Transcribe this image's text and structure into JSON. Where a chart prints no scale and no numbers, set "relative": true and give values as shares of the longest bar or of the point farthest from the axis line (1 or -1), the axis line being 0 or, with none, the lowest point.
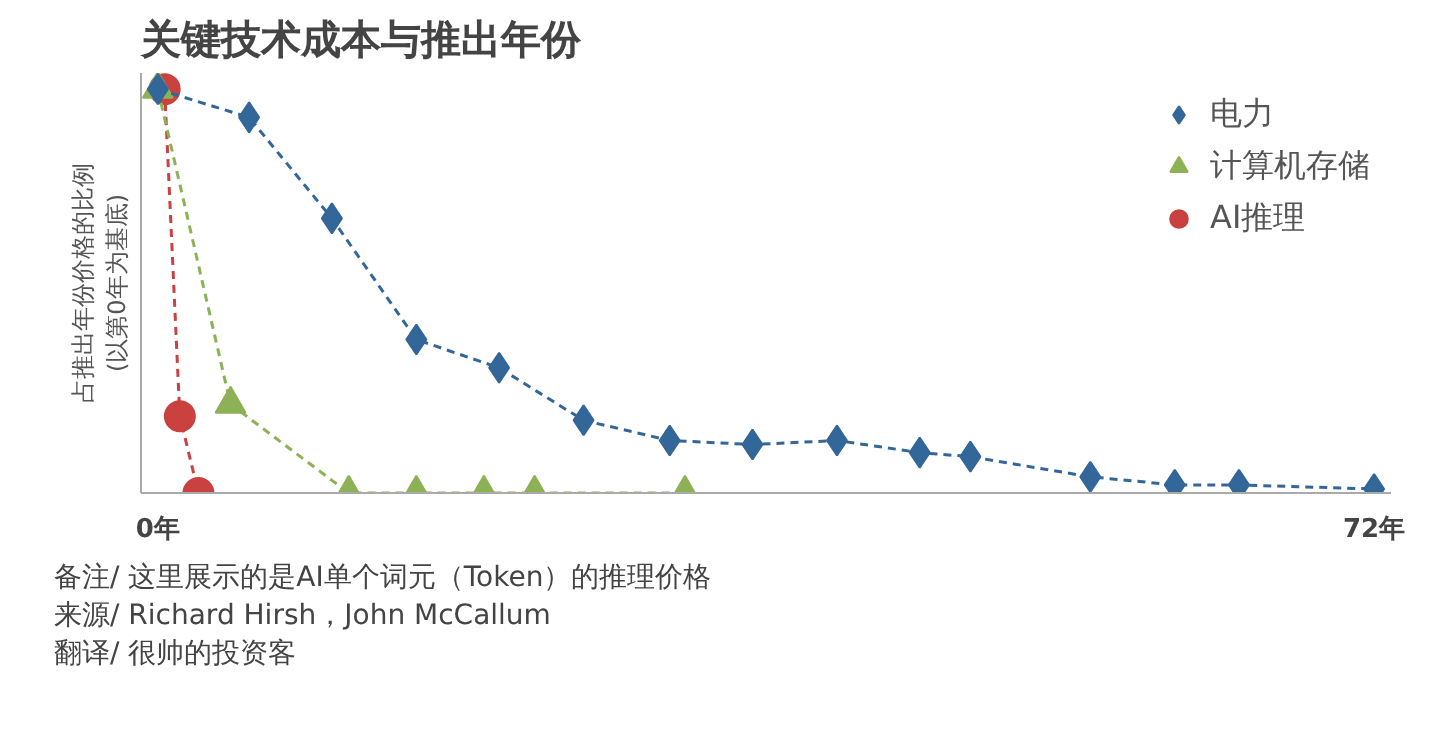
{
  "chart_data": {
    "type": "line",
    "title": "关键技术成本与推出年份",
    "ylabel": "占推出年份价格的比例\n(以第0年为基底)",
    "relative": true,
    "xlim": [
      -1,
      73
    ],
    "xticks": [
      {
        "value": 0,
        "label": "0年"
      },
      {
        "value": 72,
        "label": "72年"
      }
    ],
    "line_style": "dashed",
    "legend": "top right",
    "grid": false,
    "series": [
      {
        "name": "电力",
        "color": "#336699",
        "marker": "diamond",
        "x": [
          0,
          5.4,
          10.3,
          15.3,
          20.2,
          25.2,
          30.3,
          35.2,
          40.2,
          45.1,
          48.1,
          55.2,
          60.2,
          64.0,
          72
        ],
        "values": [
          1,
          0.93,
          0.68,
          0.38,
          0.31,
          0.18,
          0.13,
          0.12,
          0.13,
          0.1,
          0.09,
          0.04,
          0.02,
          0.02,
          0.01
        ]
      },
      {
        "name": "计算机存储",
        "color": "#8db255",
        "marker": "triangle",
        "x": [
          0,
          4.3,
          11.3,
          15.3,
          19.3,
          22.3,
          31.2
        ],
        "values": [
          1,
          0.22,
          0,
          0,
          0,
          0,
          0
        ]
      },
      {
        "name": "AI推理",
        "color": "#c9423f",
        "marker": "circle",
        "x": [
          0.4,
          1.3,
          2.4
        ],
        "values": [
          1,
          0.19,
          0
        ]
      }
    ],
    "annotations": [
      "备注/ 这里展示的是AI单个词元（Token）的推理价格",
      "来源/ Richard Hirsh，John McCallum",
      "翻译/ 很帅的投资客"
    ]
  }
}
